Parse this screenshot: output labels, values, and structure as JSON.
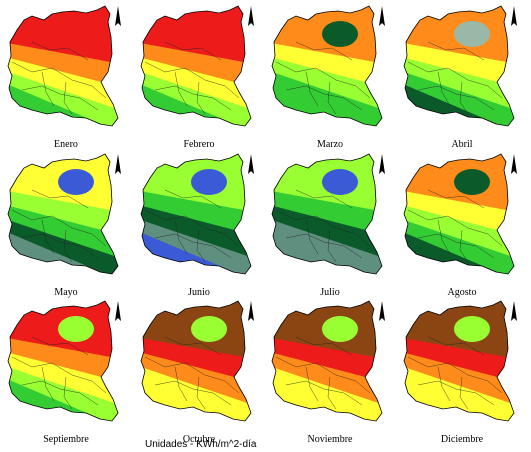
{
  "units_label": "Unidades - KWh/m^2-día",
  "colors": {
    "purple": "#9933cc",
    "brown": "#8b4513",
    "red": "#ee1b1b",
    "orange": "#ff8c1a",
    "yellow": "#ffff33",
    "light_green": "#99ff33",
    "green": "#33cc33",
    "dark_green": "#0b5a2a",
    "gray_green": "#5f8f7f",
    "blue": "#3b5bd6",
    "pale": "#9ab8a8"
  },
  "maps": [
    {
      "month": "Enero",
      "bands": [
        "red",
        "orange",
        "yellow",
        "light_green",
        "green"
      ],
      "blob": null
    },
    {
      "month": "Febrero",
      "bands": [
        "red",
        "orange",
        "yellow",
        "light_green",
        "green"
      ],
      "blob": null
    },
    {
      "month": "Marzo",
      "bands": [
        "orange",
        "yellow",
        "light_green",
        "green",
        "green"
      ],
      "blob": "dark_green"
    },
    {
      "month": "Abril",
      "bands": [
        "orange",
        "yellow",
        "light_green",
        "green",
        "dark_green"
      ],
      "blob": "pale"
    },
    {
      "month": "Mayo",
      "bands": [
        "yellow",
        "light_green",
        "green",
        "dark_green",
        "gray_green"
      ],
      "blob": "blue"
    },
    {
      "month": "Junio",
      "bands": [
        "light_green",
        "green",
        "dark_green",
        "gray_green",
        "blue"
      ],
      "blob": "blue"
    },
    {
      "month": "Julio",
      "bands": [
        "light_green",
        "green",
        "dark_green",
        "gray_green",
        "gray_green"
      ],
      "blob": "blue"
    },
    {
      "month": "Agosto",
      "bands": [
        "orange",
        "yellow",
        "light_green",
        "green",
        "dark_green"
      ],
      "blob": "dark_green"
    },
    {
      "month": "Septiembre",
      "bands": [
        "red",
        "orange",
        "yellow",
        "light_green",
        "green"
      ],
      "blob": "light_green"
    },
    {
      "month": "Octubre",
      "bands": [
        "brown",
        "red",
        "orange",
        "yellow",
        "yellow"
      ],
      "blob": "light_green"
    },
    {
      "month": "Noviembre",
      "bands": [
        "brown",
        "red",
        "orange",
        "yellow",
        "yellow"
      ],
      "blob": "light_green"
    },
    {
      "month": "Diciembre",
      "bands": [
        "brown",
        "red",
        "orange",
        "yellow",
        "yellow"
      ],
      "blob": "light_green"
    }
  ]
}
